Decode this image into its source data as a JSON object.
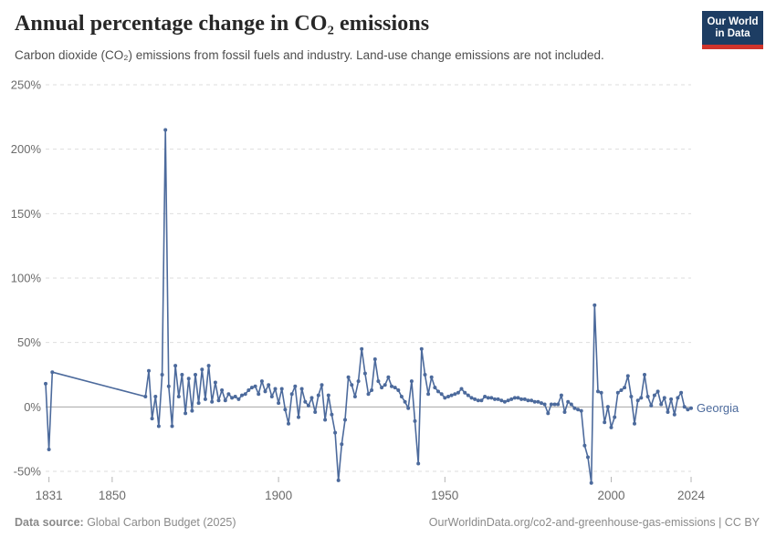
{
  "header": {
    "title": "Annual percentage change in CO₂ emissions",
    "subtitle": "Carbon dioxide (CO₂) emissions from fossil fuels and industry. Land-use change emissions are not included."
  },
  "logo": {
    "line1": "Our World",
    "line2": "in Data"
  },
  "chart_data": {
    "type": "line",
    "title": "Annual percentage change in CO₂ emissions",
    "entity_label": "Georgia",
    "x_ticks": [
      1831,
      1850,
      1900,
      1950,
      2000,
      2024
    ],
    "y_ticks": [
      -50,
      0,
      50,
      100,
      150,
      200,
      250
    ],
    "y_tick_suffix": "%",
    "xlim": [
      1830,
      2024
    ],
    "ylim": [
      -50,
      250
    ],
    "grid": "dashed-horizontal-with-solid-zero-line",
    "legend_position": "end-of-line",
    "data_gap_years": [
      1833,
      1859
    ],
    "series": [
      {
        "name": "Georgia",
        "color": "#4c6a9c",
        "points": [
          [
            1830,
            18
          ],
          [
            1831,
            -33
          ],
          [
            1832,
            27
          ],
          [
            1860,
            8
          ],
          [
            1861,
            28
          ],
          [
            1862,
            -9
          ],
          [
            1863,
            8
          ],
          [
            1864,
            -15
          ],
          [
            1865,
            25
          ],
          [
            1866,
            215
          ],
          [
            1867,
            16
          ],
          [
            1868,
            -15
          ],
          [
            1869,
            32
          ],
          [
            1870,
            8
          ],
          [
            1871,
            25
          ],
          [
            1872,
            -5
          ],
          [
            1873,
            22
          ],
          [
            1874,
            -3
          ],
          [
            1875,
            25
          ],
          [
            1876,
            3
          ],
          [
            1877,
            29
          ],
          [
            1878,
            6
          ],
          [
            1879,
            32
          ],
          [
            1880,
            4
          ],
          [
            1881,
            19
          ],
          [
            1882,
            5
          ],
          [
            1883,
            13
          ],
          [
            1884,
            5
          ],
          [
            1885,
            10
          ],
          [
            1886,
            7
          ],
          [
            1887,
            8
          ],
          [
            1888,
            6
          ],
          [
            1889,
            9
          ],
          [
            1890,
            10
          ],
          [
            1891,
            13
          ],
          [
            1892,
            15
          ],
          [
            1893,
            16
          ],
          [
            1894,
            10
          ],
          [
            1895,
            20
          ],
          [
            1896,
            12
          ],
          [
            1897,
            17
          ],
          [
            1898,
            8
          ],
          [
            1899,
            14
          ],
          [
            1900,
            3
          ],
          [
            1901,
            14
          ],
          [
            1902,
            -2
          ],
          [
            1903,
            -13
          ],
          [
            1904,
            10
          ],
          [
            1905,
            16
          ],
          [
            1906,
            -8
          ],
          [
            1907,
            14
          ],
          [
            1908,
            4
          ],
          [
            1909,
            1
          ],
          [
            1910,
            7
          ],
          [
            1911,
            -4
          ],
          [
            1912,
            9
          ],
          [
            1913,
            17
          ],
          [
            1914,
            -10
          ],
          [
            1915,
            9
          ],
          [
            1916,
            -6
          ],
          [
            1917,
            -20
          ],
          [
            1918,
            -57
          ],
          [
            1919,
            -29
          ],
          [
            1920,
            -10
          ],
          [
            1921,
            23
          ],
          [
            1922,
            17
          ],
          [
            1923,
            8
          ],
          [
            1924,
            20
          ],
          [
            1925,
            45
          ],
          [
            1926,
            26
          ],
          [
            1927,
            10
          ],
          [
            1928,
            13
          ],
          [
            1929,
            37
          ],
          [
            1930,
            20
          ],
          [
            1931,
            15
          ],
          [
            1932,
            17
          ],
          [
            1933,
            23
          ],
          [
            1934,
            16
          ],
          [
            1935,
            15
          ],
          [
            1936,
            13
          ],
          [
            1937,
            8
          ],
          [
            1938,
            4
          ],
          [
            1939,
            -1
          ],
          [
            1940,
            20
          ],
          [
            1941,
            -11
          ],
          [
            1942,
            -44
          ],
          [
            1943,
            45
          ],
          [
            1944,
            25
          ],
          [
            1945,
            10
          ],
          [
            1946,
            23
          ],
          [
            1947,
            15
          ],
          [
            1948,
            12
          ],
          [
            1949,
            10
          ],
          [
            1950,
            7
          ],
          [
            1951,
            8
          ],
          [
            1952,
            9
          ],
          [
            1953,
            10
          ],
          [
            1954,
            11
          ],
          [
            1955,
            14
          ],
          [
            1956,
            11
          ],
          [
            1957,
            9
          ],
          [
            1958,
            7
          ],
          [
            1959,
            6
          ],
          [
            1960,
            5
          ],
          [
            1961,
            5
          ],
          [
            1962,
            8
          ],
          [
            1963,
            7
          ],
          [
            1964,
            7
          ],
          [
            1965,
            6
          ],
          [
            1966,
            6
          ],
          [
            1967,
            5
          ],
          [
            1968,
            4
          ],
          [
            1969,
            5
          ],
          [
            1970,
            6
          ],
          [
            1971,
            7
          ],
          [
            1972,
            7
          ],
          [
            1973,
            6
          ],
          [
            1974,
            6
          ],
          [
            1975,
            5
          ],
          [
            1976,
            5
          ],
          [
            1977,
            4
          ],
          [
            1978,
            4
          ],
          [
            1979,
            3
          ],
          [
            1980,
            2
          ],
          [
            1981,
            -5
          ],
          [
            1982,
            2
          ],
          [
            1983,
            2
          ],
          [
            1984,
            2
          ],
          [
            1985,
            9
          ],
          [
            1986,
            -4
          ],
          [
            1987,
            4
          ],
          [
            1988,
            2
          ],
          [
            1989,
            -1
          ],
          [
            1990,
            -2
          ],
          [
            1991,
            -3
          ],
          [
            1992,
            -30
          ],
          [
            1993,
            -39
          ],
          [
            1994,
            -59
          ],
          [
            1995,
            79
          ],
          [
            1996,
            12
          ],
          [
            1997,
            11
          ],
          [
            1998,
            -12
          ],
          [
            1999,
            0
          ],
          [
            2000,
            -16
          ],
          [
            2001,
            -8
          ],
          [
            2002,
            11
          ],
          [
            2003,
            13
          ],
          [
            2004,
            15
          ],
          [
            2005,
            24
          ],
          [
            2006,
            8
          ],
          [
            2007,
            -13
          ],
          [
            2008,
            5
          ],
          [
            2009,
            7
          ],
          [
            2010,
            25
          ],
          [
            2011,
            8
          ],
          [
            2012,
            1
          ],
          [
            2013,
            9
          ],
          [
            2014,
            12
          ],
          [
            2015,
            2
          ],
          [
            2016,
            7
          ],
          [
            2017,
            -4
          ],
          [
            2018,
            6
          ],
          [
            2019,
            -6
          ],
          [
            2020,
            7
          ],
          [
            2021,
            11
          ],
          [
            2022,
            0
          ],
          [
            2023,
            -2
          ],
          [
            2024,
            -1
          ]
        ]
      }
    ]
  },
  "footer": {
    "source_label": "Data source:",
    "source_text": " Global Carbon Budget (2025)",
    "rights": "OurWorldinData.org/co2-and-greenhouse-gas-emissions | CC BY"
  },
  "colors": {
    "line": "#4c6a9c",
    "gridline": "#dedede",
    "zero_line": "#a5a5a5",
    "tick_mark": "#b3b3b3",
    "tick_label": "#6b6b6b",
    "logo_bg": "#1d3d63",
    "logo_red": "#d0342c"
  }
}
